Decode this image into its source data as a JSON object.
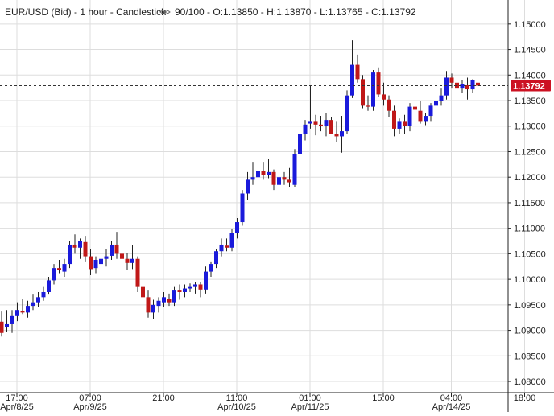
{
  "header": {
    "symbol": "EUR/USD (Bid)",
    "timeframe": "1 hour",
    "style": "Candlestick",
    "counter": "90/100",
    "ohlc": "O:1.13850 - H:1.13870 - L:1.13765 - C:1.13792",
    "eye_icon": "eye-icon"
  },
  "current_price": {
    "label": "1.13792",
    "value": 1.13792,
    "color": "#cc1122"
  },
  "colors": {
    "up": "#1a1adb",
    "down": "#c01818",
    "wick": "#222222",
    "grid": "#dddddd"
  },
  "chart_data": {
    "type": "candlestick",
    "title": "",
    "ylim": [
      1.0778,
      1.1547
    ],
    "y_ticks": [
      "1.15000",
      "1.14500",
      "1.14000",
      "1.13500",
      "1.13000",
      "1.12500",
      "1.12000",
      "1.11500",
      "1.11000",
      "1.10500",
      "1.10000",
      "1.09500",
      "1.09000",
      "1.08500",
      "1.08000"
    ],
    "x_ticks": [
      {
        "time": "17:00",
        "date": "Apr/8/25",
        "index": 3
      },
      {
        "time": "07:00",
        "date": "Apr/9/25",
        "index": 17
      },
      {
        "time": "21:00",
        "date": "",
        "index": 31
      },
      {
        "time": "11:00",
        "date": "Apr/10/25",
        "index": 45
      },
      {
        "time": "01:00",
        "date": "Apr/11/25",
        "index": 59
      },
      {
        "time": "15:00",
        "date": "",
        "index": 73
      },
      {
        "time": "04:00",
        "date": "Apr/14/25",
        "index": 86
      },
      {
        "time": "18:00",
        "date": "",
        "index": 100
      }
    ],
    "candles": [
      [
        1.0917,
        1.0937,
        1.0888,
        1.0895
      ],
      [
        1.0906,
        1.094,
        1.0897,
        1.0912
      ],
      [
        1.0912,
        1.094,
        1.0895,
        1.0928
      ],
      [
        1.0928,
        1.0955,
        1.0918,
        1.094
      ],
      [
        1.0938,
        1.0962,
        1.0932,
        1.0935
      ],
      [
        1.0935,
        1.0958,
        1.0925,
        1.0948
      ],
      [
        1.0948,
        1.097,
        1.094,
        1.0955
      ],
      [
        1.0955,
        1.0975,
        1.0945,
        1.0965
      ],
      [
        1.0965,
        1.0985,
        1.0958,
        1.0975
      ],
      [
        1.0975,
        1.1005,
        1.097,
        1.0998
      ],
      [
        1.0998,
        1.103,
        1.099,
        1.1022
      ],
      [
        1.1022,
        1.1038,
        1.1012,
        1.1018
      ],
      [
        1.1015,
        1.104,
        1.1005,
        1.103
      ],
      [
        1.103,
        1.1075,
        1.1022,
        1.1068
      ],
      [
        1.1068,
        1.1088,
        1.105,
        1.1062
      ],
      [
        1.1062,
        1.108,
        1.104,
        1.1075
      ],
      [
        1.1073,
        1.1085,
        1.1035,
        1.1045
      ],
      [
        1.1045,
        1.106,
        1.1008,
        1.102
      ],
      [
        1.1022,
        1.1045,
        1.1012,
        1.1038
      ],
      [
        1.103,
        1.105,
        1.1018,
        1.104
      ],
      [
        1.104,
        1.106,
        1.1025,
        1.1045
      ],
      [
        1.1046,
        1.1075,
        1.1038,
        1.1068
      ],
      [
        1.1068,
        1.1093,
        1.104,
        1.105
      ],
      [
        1.105,
        1.106,
        1.103,
        1.104
      ],
      [
        1.104,
        1.1052,
        1.1018,
        1.1032
      ],
      [
        1.1032,
        1.1068,
        1.102,
        1.104
      ],
      [
        1.104,
        1.1045,
        1.0975,
        1.0985
      ],
      [
        1.0985,
        1.0995,
        1.0912,
        1.0965
      ],
      [
        1.0965,
        1.0978,
        1.0925,
        1.0935
      ],
      [
        1.0935,
        1.096,
        1.0922,
        1.095
      ],
      [
        1.0948,
        1.0965,
        1.0935,
        1.0958
      ],
      [
        1.0955,
        1.0975,
        1.0945,
        1.0965
      ],
      [
        1.0962,
        1.0972,
        1.0948,
        1.0955
      ],
      [
        1.0955,
        1.0985,
        1.0948,
        1.0978
      ],
      [
        1.0978,
        1.099,
        1.096,
        1.0975
      ],
      [
        1.0975,
        1.099,
        1.0965,
        1.0982
      ],
      [
        1.0982,
        1.0992,
        1.0975,
        1.0985
      ],
      [
        1.0985,
        1.0995,
        1.0972,
        1.099
      ],
      [
        1.099,
        1.0995,
        1.0965,
        1.098
      ],
      [
        1.098,
        1.1025,
        1.0972,
        1.1015
      ],
      [
        1.1015,
        1.1035,
        1.1005,
        1.103
      ],
      [
        1.103,
        1.106,
        1.1022,
        1.1055
      ],
      [
        1.1055,
        1.108,
        1.1045,
        1.1068
      ],
      [
        1.1066,
        1.108,
        1.1055,
        1.1062
      ],
      [
        1.1062,
        1.1098,
        1.1055,
        1.109
      ],
      [
        1.109,
        1.112,
        1.108,
        1.1112
      ],
      [
        1.1112,
        1.1175,
        1.1105,
        1.1168
      ],
      [
        1.1168,
        1.121,
        1.1155,
        1.1195
      ],
      [
        1.1195,
        1.123,
        1.1185,
        1.12
      ],
      [
        1.12,
        1.122,
        1.119,
        1.1212
      ],
      [
        1.1212,
        1.123,
        1.1195,
        1.1205
      ],
      [
        1.1205,
        1.1235,
        1.1198,
        1.121
      ],
      [
        1.121,
        1.1215,
        1.1175,
        1.1185
      ],
      [
        1.1185,
        1.1215,
        1.1165,
        1.12
      ],
      [
        1.12,
        1.121,
        1.1185,
        1.1195
      ],
      [
        1.1195,
        1.1218,
        1.118,
        1.119
      ],
      [
        1.1185,
        1.1255,
        1.118,
        1.1245
      ],
      [
        1.1245,
        1.129,
        1.124,
        1.1285
      ],
      [
        1.1285,
        1.1312,
        1.1272,
        1.1303
      ],
      [
        1.1305,
        1.138,
        1.1295,
        1.131
      ],
      [
        1.131,
        1.1322,
        1.1282,
        1.1303
      ],
      [
        1.1303,
        1.132,
        1.129,
        1.13
      ],
      [
        1.13,
        1.1325,
        1.128,
        1.1312
      ],
      [
        1.1312,
        1.1318,
        1.1285,
        1.1285
      ],
      [
        1.1285,
        1.131,
        1.1268,
        1.128
      ],
      [
        1.128,
        1.132,
        1.1248,
        1.129
      ],
      [
        1.129,
        1.137,
        1.1285,
        1.136
      ],
      [
        1.136,
        1.1468,
        1.1355,
        1.142
      ],
      [
        1.142,
        1.144,
        1.1385,
        1.1392
      ],
      [
        1.1392,
        1.14,
        1.1335,
        1.134
      ],
      [
        1.134,
        1.136,
        1.133,
        1.1338
      ],
      [
        1.1338,
        1.141,
        1.133,
        1.1405
      ],
      [
        1.1405,
        1.1415,
        1.1358,
        1.1362
      ],
      [
        1.1362,
        1.1385,
        1.134,
        1.1352
      ],
      [
        1.1352,
        1.136,
        1.1318,
        1.133
      ],
      [
        1.133,
        1.134,
        1.128,
        1.1295
      ],
      [
        1.1295,
        1.1315,
        1.1285,
        1.131
      ],
      [
        1.131,
        1.1322,
        1.1285,
        1.13
      ],
      [
        1.13,
        1.1345,
        1.129,
        1.1338
      ],
      [
        1.1338,
        1.1378,
        1.1325,
        1.1332
      ],
      [
        1.133,
        1.135,
        1.1305,
        1.131
      ],
      [
        1.131,
        1.1325,
        1.1302,
        1.132
      ],
      [
        1.132,
        1.1345,
        1.131,
        1.134
      ],
      [
        1.134,
        1.136,
        1.133,
        1.135
      ],
      [
        1.135,
        1.1375,
        1.134,
        1.136
      ],
      [
        1.136,
        1.1408,
        1.1352,
        1.1395
      ],
      [
        1.1395,
        1.1403,
        1.1375,
        1.1385
      ],
      [
        1.1385,
        1.1395,
        1.136,
        1.1375
      ],
      [
        1.1375,
        1.139,
        1.1365,
        1.1382
      ],
      [
        1.138,
        1.1395,
        1.1352,
        1.1372
      ],
      [
        1.1372,
        1.1392,
        1.1365,
        1.139
      ],
      [
        1.1385,
        1.1387,
        1.13765,
        1.13792
      ]
    ]
  }
}
